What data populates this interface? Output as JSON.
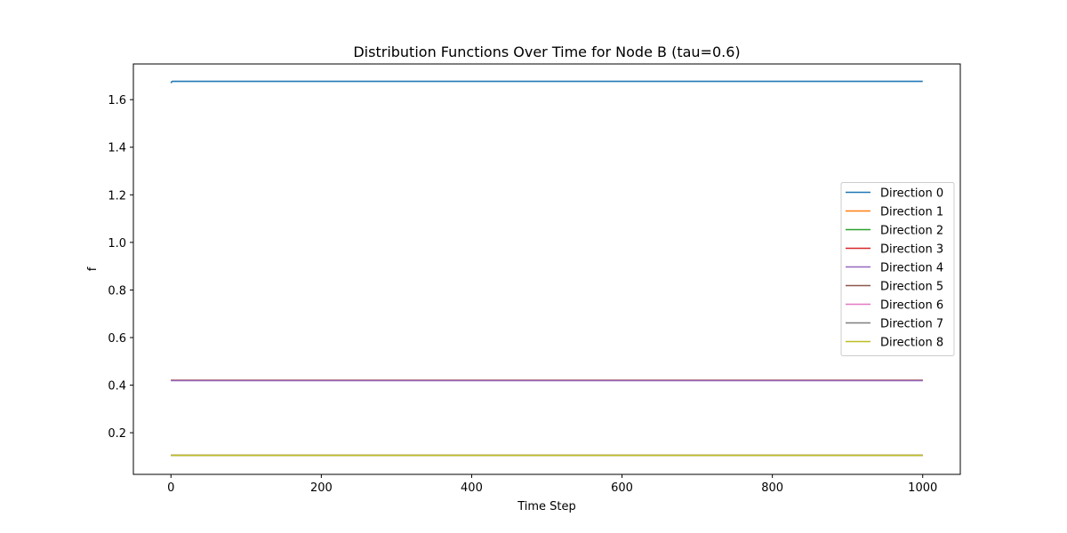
{
  "chart_data": {
    "type": "line",
    "title": "Distribution Functions Over Time for Node B (tau=0.6)",
    "xlabel": "Time Step",
    "ylabel": "f",
    "xlim": [
      -50,
      1050
    ],
    "ylim": [
      0.025,
      1.75
    ],
    "xticks": [
      0,
      200,
      400,
      600,
      800,
      1000
    ],
    "yticks": [
      0.2,
      0.4,
      0.6,
      0.8,
      1.0,
      1.2,
      1.4,
      1.6
    ],
    "grid": false,
    "legend_position": "center-right",
    "series": [
      {
        "name": "Direction 0",
        "color": "#1f77b4",
        "x": [
          0,
          1,
          2,
          1000
        ],
        "y": [
          1.67,
          1.675,
          1.677,
          1.677
        ]
      },
      {
        "name": "Direction 1",
        "color": "#ff7f0e",
        "x": [
          0,
          1000
        ],
        "y": [
          0.42,
          0.42
        ]
      },
      {
        "name": "Direction 2",
        "color": "#2ca02c",
        "x": [
          0,
          1000
        ],
        "y": [
          0.42,
          0.42
        ]
      },
      {
        "name": "Direction 3",
        "color": "#d62728",
        "x": [
          0,
          1000
        ],
        "y": [
          0.42,
          0.42
        ]
      },
      {
        "name": "Direction 4",
        "color": "#9467bd",
        "x": [
          0,
          1000
        ],
        "y": [
          0.419,
          0.419
        ]
      },
      {
        "name": "Direction 5",
        "color": "#8c564b",
        "x": [
          0,
          1000
        ],
        "y": [
          0.105,
          0.105
        ]
      },
      {
        "name": "Direction 6",
        "color": "#e377c2",
        "x": [
          0,
          1000
        ],
        "y": [
          0.105,
          0.105
        ]
      },
      {
        "name": "Direction 7",
        "color": "#7f7f7f",
        "x": [
          0,
          1000
        ],
        "y": [
          0.105,
          0.105
        ]
      },
      {
        "name": "Direction 8",
        "color": "#bcbd22",
        "x": [
          0,
          1000
        ],
        "y": [
          0.105,
          0.105
        ]
      }
    ]
  }
}
